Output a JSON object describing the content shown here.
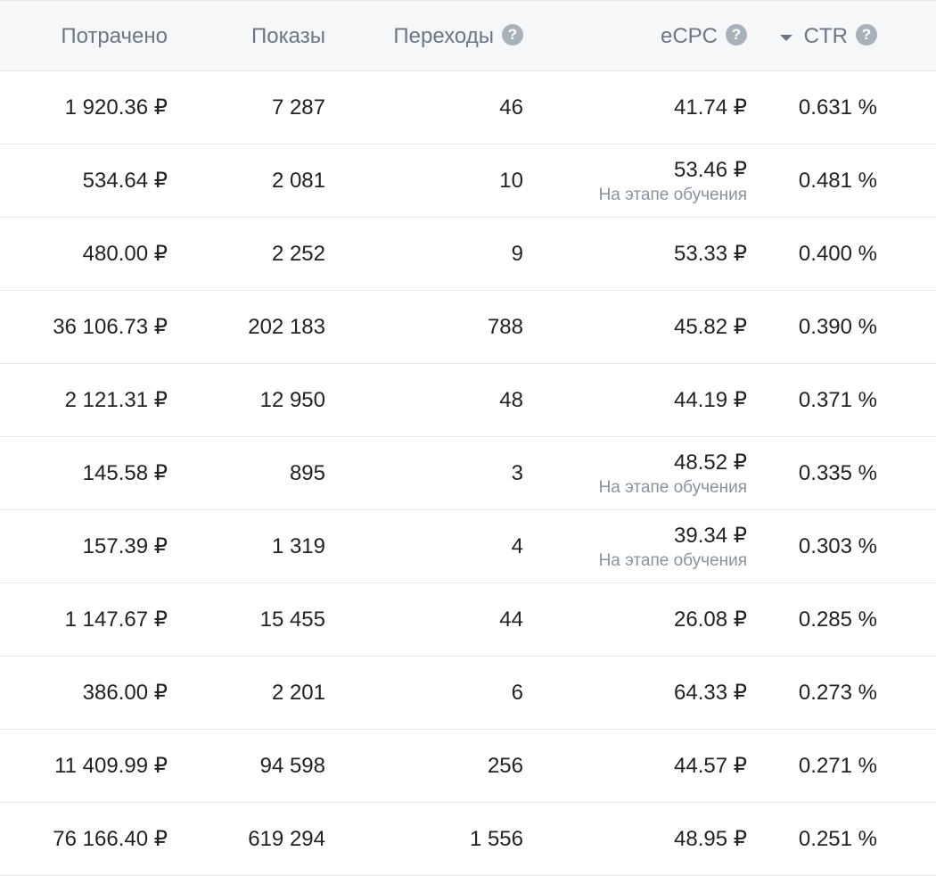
{
  "header": {
    "spent": "Потрачено",
    "impressions": "Показы",
    "clicks": "Переходы",
    "ecpc": "eCPC",
    "ctr": "CTR",
    "help_glyph": "?",
    "sort_direction": "descending"
  },
  "rows": [
    {
      "spent": "1 920.36 ₽",
      "impressions": "7 287",
      "clicks": "46",
      "ecpc": "41.74 ₽",
      "note": "",
      "ctr": "0.631 %"
    },
    {
      "spent": "534.64 ₽",
      "impressions": "2 081",
      "clicks": "10",
      "ecpc": "53.46 ₽",
      "note": "На этапе обучения",
      "ctr": "0.481 %"
    },
    {
      "spent": "480.00 ₽",
      "impressions": "2 252",
      "clicks": "9",
      "ecpc": "53.33 ₽",
      "note": "",
      "ctr": "0.400 %"
    },
    {
      "spent": "36 106.73 ₽",
      "impressions": "202 183",
      "clicks": "788",
      "ecpc": "45.82 ₽",
      "note": "",
      "ctr": "0.390 %"
    },
    {
      "spent": "2 121.31 ₽",
      "impressions": "12 950",
      "clicks": "48",
      "ecpc": "44.19 ₽",
      "note": "",
      "ctr": "0.371 %"
    },
    {
      "spent": "145.58 ₽",
      "impressions": "895",
      "clicks": "3",
      "ecpc": "48.52 ₽",
      "note": "На этапе обучения",
      "ctr": "0.335 %"
    },
    {
      "spent": "157.39 ₽",
      "impressions": "1 319",
      "clicks": "4",
      "ecpc": "39.34 ₽",
      "note": "На этапе обучения",
      "ctr": "0.303 %"
    },
    {
      "spent": "1 147.67 ₽",
      "impressions": "15 455",
      "clicks": "44",
      "ecpc": "26.08 ₽",
      "note": "",
      "ctr": "0.285 %"
    },
    {
      "spent": "386.00 ₽",
      "impressions": "2 201",
      "clicks": "6",
      "ecpc": "64.33 ₽",
      "note": "",
      "ctr": "0.273 %"
    },
    {
      "spent": "11 409.99 ₽",
      "impressions": "94 598",
      "clicks": "256",
      "ecpc": "44.57 ₽",
      "note": "",
      "ctr": "0.271 %"
    },
    {
      "spent": "76 166.40 ₽",
      "impressions": "619 294",
      "clicks": "1 556",
      "ecpc": "48.95 ₽",
      "note": "",
      "ctr": "0.251 %"
    }
  ],
  "colors": {
    "header_bg": "#f6f7f8",
    "header_text": "#6b7785",
    "cell_text": "#222222",
    "note_text": "#8a939d",
    "divider": "#e4e6e8",
    "help_icon_bg": "#a9b1ba"
  }
}
